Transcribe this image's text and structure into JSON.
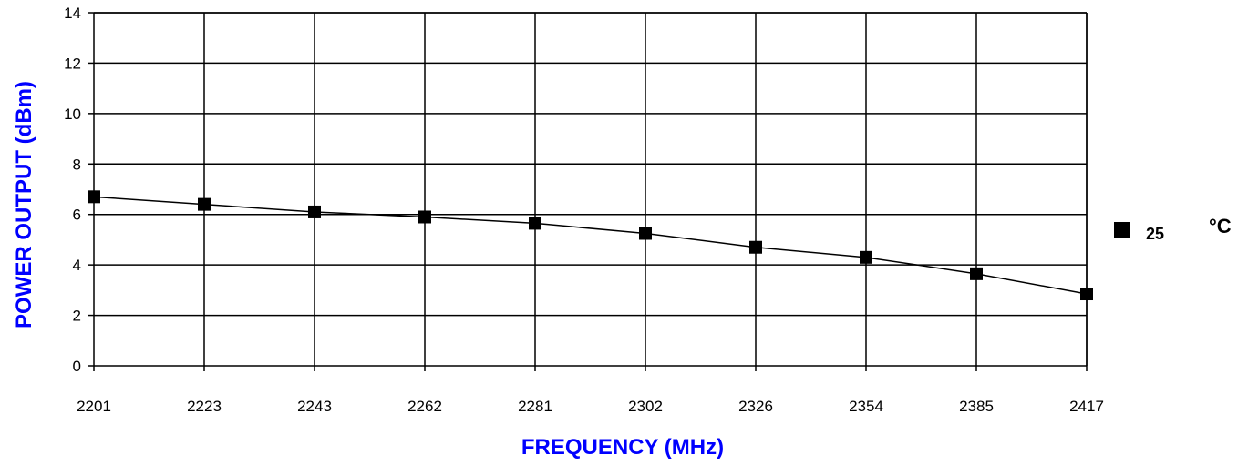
{
  "chart_data": {
    "type": "line",
    "xlabel": "FREQUENCY (MHz)",
    "ylabel": "POWER OUTPUT (dBm)",
    "categories": [
      "2201",
      "2223",
      "2243",
      "2262",
      "2281",
      "2302",
      "2326",
      "2354",
      "2385",
      "2417"
    ],
    "ylim": [
      0,
      14
    ],
    "yticks": [
      "0",
      "2",
      "4",
      "6",
      "8",
      "10",
      "12",
      "14"
    ],
    "grid": true,
    "legend_position": "right",
    "series": [
      {
        "name": "25",
        "unit_label": "°C",
        "values": [
          6.7,
          6.4,
          6.1,
          5.9,
          5.65,
          5.25,
          4.7,
          4.3,
          3.65,
          2.85
        ],
        "color": "#000000",
        "marker": "square"
      }
    ]
  }
}
